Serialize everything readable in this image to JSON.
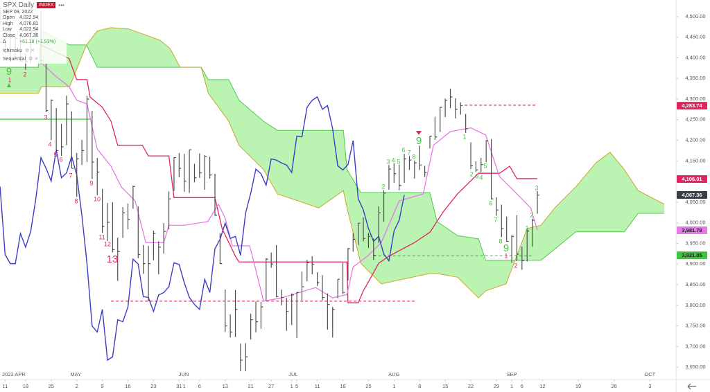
{
  "header": {
    "symbol": "SPX Daily",
    "badge": "INDEX",
    "date": "SEP 09, 2022",
    "rows": [
      {
        "label": "Open",
        "value": "4,022.94"
      },
      {
        "label": "High",
        "value": "4,076.81"
      },
      {
        "label": "Low",
        "value": "4,022.94"
      },
      {
        "label": "Close",
        "value": "4,067.36"
      }
    ],
    "change_label": "Δ",
    "change": "+61.18 (+1.53%)",
    "indicators": [
      "Ichimoku",
      "Sequential"
    ]
  },
  "chart_data": {
    "type": "ohlc",
    "color": "#4d4d4d",
    "x": [
      0,
      1,
      2,
      3,
      4,
      5,
      6,
      7,
      8,
      9,
      10,
      11,
      12,
      13,
      14,
      15,
      16,
      17,
      18,
      19,
      20,
      21,
      22,
      23,
      24,
      25,
      26,
      27,
      28,
      29,
      30,
      31,
      32,
      33,
      34,
      35,
      36,
      37,
      38,
      39,
      40,
      41,
      42,
      43,
      44,
      45,
      46,
      47,
      48,
      49,
      50,
      51,
      52,
      53,
      54,
      55,
      56,
      57,
      58,
      59,
      60,
      61,
      62,
      63,
      64,
      65,
      66,
      67,
      68,
      69,
      70,
      71,
      72,
      73,
      74,
      75,
      76,
      77,
      78,
      79,
      80,
      81,
      82,
      83,
      84,
      85,
      86,
      87,
      88,
      89,
      90,
      91,
      92,
      93,
      94,
      95,
      96,
      97,
      98,
      99,
      100,
      101,
      102,
      103,
      104,
      105
    ],
    "high": [
      4521,
      4464,
      4471,
      4453,
      4460,
      4411,
      4471,
      4489,
      4512,
      4386,
      4299,
      4278,
      4240,
      4308,
      4270,
      4169,
      4201,
      4308,
      4271,
      4157,
      4082,
      4048,
      4050,
      3964,
      4038,
      4047,
      4090,
      4040,
      3946,
      3944,
      3981,
      3955,
      3999,
      4076,
      4158,
      4169,
      4167,
      4177,
      4143,
      4168,
      4164,
      4160,
      4119,
      3975,
      3838,
      3778,
      3837,
      3707,
      3708,
      3780,
      3809,
      3808,
      3914,
      3928,
      3946,
      3838,
      3818,
      3829,
      3832,
      3882,
      3910,
      3919,
      3880,
      3873,
      3829,
      3796,
      3863,
      3903,
      3939,
      3975,
      3999,
      4013,
      3975,
      3962,
      4040,
      4079,
      4140,
      4144,
      4141,
      4167,
      4162,
      4151,
      4187,
      4138,
      4211,
      4257,
      4281,
      4301,
      4325,
      4302,
      4292,
      4264,
      4195,
      4149,
      4157,
      4200,
      4203,
      4062,
      4044,
      4015,
      3970,
      4018,
      3942,
      3987,
      4010,
      4077
    ],
    "low": [
      4481,
      4412,
      4395,
      4397,
      4390,
      4371,
      4387,
      4448,
      4385,
      4268,
      4200,
      4175,
      4162,
      4188,
      4132,
      4063,
      4140,
      4147,
      4106,
      4067,
      3975,
      3956,
      3928,
      3859,
      3963,
      3984,
      4034,
      3914,
      3876,
      3810,
      3909,
      3875,
      3925,
      3984,
      4077,
      4110,
      4075,
      4073,
      4098,
      4109,
      4080,
      4107,
      4017,
      3900,
      3735,
      3722,
      3723,
      3640,
      3640,
      3717,
      3734,
      3743,
      3810,
      3891,
      3820,
      3800,
      3738,
      3752,
      3721,
      3812,
      3858,
      3875,
      3847,
      3812,
      3741,
      3722,
      3817,
      3827,
      3860,
      3930,
      3946,
      3955,
      3939,
      3910,
      3951,
      4003,
      4080,
      4097,
      4079,
      4097,
      4128,
      4107,
      4128,
      4111,
      4180,
      4201,
      4220,
      4256,
      4278,
      4253,
      4262,
      4218,
      4130,
      4123,
      4122,
      4147,
      4057,
      4017,
      3965,
      3954,
      3903,
      3907,
      3886,
      3906,
      3942,
      4022
    ],
    "close": [
      4488,
      4413,
      4397,
      4447,
      4392,
      4391,
      4462,
      4459,
      4393,
      4272,
      4297,
      4175,
      4184,
      4288,
      4132,
      4155,
      4175,
      4300,
      4147,
      4123,
      3991,
      4001,
      3935,
      3930,
      4024,
      4008,
      4088,
      3923,
      3901,
      3901,
      3974,
      3941,
      3979,
      4058,
      4158,
      4132,
      4101,
      4177,
      4109,
      4121,
      4161,
      4116,
      4018,
      3901,
      3750,
      3735,
      3790,
      3667,
      3675,
      3765,
      3760,
      3796,
      3912,
      3900,
      3821,
      3819,
      3785,
      3825,
      3831,
      3845,
      3903,
      3899,
      3855,
      3819,
      3802,
      3790,
      3863,
      3831,
      3937,
      3960,
      3999,
      3962,
      3967,
      3921,
      4024,
      4072,
      4130,
      4119,
      4091,
      4155,
      4152,
      4145,
      4140,
      4122,
      4210,
      4208,
      4280,
      4297,
      4305,
      4275,
      4284,
      4228,
      4138,
      4128,
      4141,
      4199,
      4058,
      4031,
      3986,
      3955,
      3967,
      3924,
      3908,
      3980,
      4006,
      4067
    ],
    "xlim": [
      0,
      132.1
    ],
    "ylim": [
      3620,
      4540
    ],
    "yticks": [
      {
        "value": 3650,
        "label": "3,650.00"
      },
      {
        "value": 3700,
        "label": "3,700.00"
      },
      {
        "value": 3750,
        "label": "3,750.00"
      },
      {
        "value": 3800,
        "label": "3,800.00"
      },
      {
        "value": 3850,
        "label": "3,850.00"
      },
      {
        "value": 3900,
        "label": "3,900.00"
      },
      {
        "value": 3950,
        "label": "3,950.00"
      },
      {
        "value": 4000,
        "label": "4,000.00"
      },
      {
        "value": 4050,
        "label": "4,050.00"
      },
      {
        "value": 4100,
        "label": "4,100.00"
      },
      {
        "value": 4150,
        "label": "4,150.00"
      },
      {
        "value": 4200,
        "label": "4,200.00"
      },
      {
        "value": 4250,
        "label": "4,250.00"
      },
      {
        "value": 4300,
        "label": "4,300.00"
      },
      {
        "value": 4350,
        "label": "4,350.00"
      },
      {
        "value": 4400,
        "label": "4,400.00"
      },
      {
        "value": 4450,
        "label": "4,450.00"
      },
      {
        "value": 4500,
        "label": "4,500.00"
      }
    ],
    "xticks": [
      {
        "value": 1,
        "label": "11"
      },
      {
        "value": 5,
        "label": "18"
      },
      {
        "value": 10,
        "label": "25"
      },
      {
        "value": 15,
        "label": "2"
      },
      {
        "value": 20,
        "label": "9"
      },
      {
        "value": 25,
        "label": "16"
      },
      {
        "value": 30,
        "label": "23"
      },
      {
        "value": 35,
        "label": "31"
      },
      {
        "value": 36,
        "label": "1"
      },
      {
        "value": 39,
        "label": "6"
      },
      {
        "value": 44,
        "label": "13"
      },
      {
        "value": 49,
        "label": "21"
      },
      {
        "value": 53,
        "label": "27"
      },
      {
        "value": 57,
        "label": "1"
      },
      {
        "value": 58,
        "label": "5"
      },
      {
        "value": 62,
        "label": "11"
      },
      {
        "value": 67,
        "label": "18"
      },
      {
        "value": 72,
        "label": "25"
      },
      {
        "value": 77,
        "label": "1"
      },
      {
        "value": 82,
        "label": "8"
      },
      {
        "value": 87,
        "label": "15"
      },
      {
        "value": 92,
        "label": "22"
      },
      {
        "value": 97,
        "label": "29"
      },
      {
        "value": 100,
        "label": "1"
      },
      {
        "value": 102,
        "label": "6"
      },
      {
        "value": 106,
        "label": "12"
      },
      {
        "value": 113,
        "label": "19"
      },
      {
        "value": 120,
        "label": "26"
      },
      {
        "value": 127,
        "label": "3"
      }
    ],
    "month_labels": [
      {
        "value": 2.7,
        "label": "2022 APR"
      },
      {
        "value": 14.8,
        "label": "MAY"
      },
      {
        "value": 35.9,
        "label": "JUN"
      },
      {
        "value": 57.3,
        "label": "JUL"
      },
      {
        "value": 77,
        "label": "AUG"
      },
      {
        "value": 100,
        "label": "SEP"
      },
      {
        "value": 127,
        "label": "OCT"
      }
    ],
    "cloud": {
      "fill": "#b2f2aa",
      "span_a_color": "#4cc94c",
      "span_b_color": "#c9a72a",
      "x": [
        0,
        7.5,
        8.1,
        13.6,
        16.9,
        19,
        21.7,
        25.1,
        31.2,
        33.2,
        35.2,
        39.3,
        40.7,
        44.7,
        46.7,
        51.5,
        54.2,
        62.3,
        67.1,
        67.8,
        70.5,
        74.5,
        84,
        85.4,
        89.4,
        93.5,
        94.9,
        98.9,
        103,
        105.7,
        108.4,
        112.5,
        116.5,
        119.2,
        122,
        124.7,
        129.8
      ],
      "span_a": [
        4377,
        4377,
        4465,
        4431,
        4431,
        4377,
        4377,
        4377,
        4377,
        4377,
        4377,
        4377,
        4347,
        4347,
        4297,
        4246,
        4224,
        4224,
        4224,
        4129,
        4073,
        4073,
        4073,
        4003,
        3969,
        3961,
        3909,
        3909,
        3909,
        3909,
        3936,
        3978,
        3978,
        3978,
        3978,
        4023,
        4023
      ],
      "span_b": [
        4314,
        4314,
        4330,
        4330,
        4431,
        4465,
        4473,
        4470,
        4443,
        4423,
        4377,
        4377,
        4314,
        4246,
        4188,
        4129,
        4070,
        4036,
        4078,
        4036,
        3902,
        3852,
        3877,
        3877,
        3868,
        3818,
        3835,
        3852,
        3986,
        3994,
        4036,
        4087,
        4146,
        4171,
        4129,
        4078,
        4045
      ]
    },
    "lines": [
      {
        "color": "#e0245e",
        "x": [
          8,
          13.5,
          15,
          17,
          17.6,
          20,
          21.7,
          23,
          27.8,
          29,
          33,
          34,
          42,
          43.4,
          46,
          46.7,
          67.8,
          68,
          70,
          71,
          72.5,
          74,
          76,
          81,
          84,
          86.7,
          89.4,
          93.5,
          97.6,
          99.6,
          101,
          105
        ],
        "values": [
          4431,
          4398,
          4347,
          4347,
          4305,
          4280,
          4246,
          4188,
          4188,
          4162,
          4162,
          4061,
          4061,
          3986,
          3919,
          3905,
          3905,
          3806,
          3806,
          3835,
          3868,
          3902,
          3919,
          3952,
          3977,
          4028,
          4070,
          4120,
          4120,
          4137,
          4107,
          4107
        ]
      },
      {
        "color": "#e67ae6",
        "x": [
          8,
          10.8,
          13.5,
          15,
          17,
          19,
          21.7,
          23.7,
          26.4,
          28.5,
          32,
          33,
          36,
          40.6,
          42.7,
          44,
          45.4,
          48.8,
          50,
          51.5,
          55,
          61.7,
          65,
          67.8,
          69,
          71.8,
          74.5,
          78,
          82.7,
          84.7,
          88,
          92,
          94.9,
          97.6,
          101,
          103.7,
          105
        ],
        "values": [
          4389,
          4356,
          4330,
          4297,
          4288,
          4179,
          4137,
          4087,
          4053,
          3952,
          3952,
          3994,
          3994,
          4003,
          4045,
          4011,
          3944,
          3944,
          3885,
          3810,
          3818,
          3843,
          3818,
          3826,
          3893,
          3919,
          3952,
          4053,
          4070,
          4188,
          4221,
          4230,
          4213,
          4112,
          4070,
          4036,
          3982
        ]
      }
    ],
    "lagging": {
      "color": "#3a3dc4",
      "source": "close",
      "shift": -26
    },
    "levels": [
      {
        "value": 4285,
        "from": 90.8,
        "to": 105,
        "color": "#e0245e",
        "dashed": true
      },
      {
        "value": 3810,
        "from": 21.7,
        "to": 81.3,
        "color": "#e0245e",
        "dashed": true
      },
      {
        "value": 3920,
        "from": 73,
        "to": 104.3,
        "color": "#3ec43e",
        "dashed": true
      },
      {
        "value": 4251,
        "from": 0,
        "to": 17.6,
        "color": "#3ec43e",
        "dashed": false
      }
    ],
    "price_labels": [
      {
        "value": 4283.74,
        "label": "4,283.74",
        "color": "#e0245e",
        "text_color": "#ffffff"
      },
      {
        "value": 4106.01,
        "label": "4,106.01",
        "color": "#e0245e",
        "text_color": "#ffffff"
      },
      {
        "value": 4067.36,
        "label": "4,067.36",
        "color": "#3a3f47",
        "text_color": "#ffffff"
      },
      {
        "value": 3981.78,
        "label": "3,981.78",
        "color": "#e67ae6",
        "text_color": "#222222"
      },
      {
        "value": 3921.05,
        "label": "3,921.05",
        "color": "#3ec43e",
        "text_color": "#222222"
      }
    ],
    "sequential_labels": [
      {
        "text": "9",
        "color": "#3ec43e"
      },
      {
        "text": "1",
        "color": "#e0245e"
      },
      {
        "text": "2",
        "color": "#e0245e"
      },
      {
        "text": "3",
        "color": "#e0245e"
      },
      {
        "text": "4",
        "color": "#e0245e"
      },
      {
        "text": "5",
        "color": "#e0245e"
      },
      {
        "text": "6",
        "color": "#e0245e"
      },
      {
        "text": "7",
        "color": "#e0245e"
      },
      {
        "text": "8",
        "color": "#e0245e"
      },
      {
        "text": "9",
        "color": "#e0245e"
      },
      {
        "text": "10",
        "color": "#e0245e"
      },
      {
        "text": "11",
        "color": "#e0245e"
      },
      {
        "text": "12",
        "color": "#e0245e"
      },
      {
        "text": "13",
        "color": "#e0245e"
      },
      {
        "text": "2",
        "color": "#3ec43e"
      },
      {
        "text": "3",
        "color": "#3ec43e"
      },
      {
        "text": "4",
        "color": "#3ec43e"
      },
      {
        "text": "5",
        "color": "#3ec43e"
      },
      {
        "text": "6",
        "color": "#3ec43e"
      },
      {
        "text": "7",
        "color": "#3ec43e"
      },
      {
        "text": "8",
        "color": "#3ec43e"
      },
      {
        "text": "9",
        "color": "#3ec43e"
      },
      {
        "text": "1",
        "color": "#3ec43e"
      },
      {
        "text": "2",
        "color": "#3ec43e"
      },
      {
        "text": "3",
        "color": "#3ec43e"
      },
      {
        "text": "4",
        "color": "#3ec43e"
      },
      {
        "text": "5",
        "color": "#3ec43e"
      },
      {
        "text": "6",
        "color": "#3ec43e"
      },
      {
        "text": "7",
        "color": "#3ec43e"
      },
      {
        "text": "8",
        "color": "#3ec43e"
      },
      {
        "text": "9",
        "color": "#3ec43e"
      },
      {
        "text": "1",
        "color": "#e0245e"
      },
      {
        "text": "2",
        "color": "#e0245e"
      },
      {
        "text": "1",
        "color": "#3ec43e"
      },
      {
        "text": "2",
        "color": "#3ec43e"
      },
      {
        "text": "3",
        "color": "#3ec43e"
      }
    ]
  }
}
